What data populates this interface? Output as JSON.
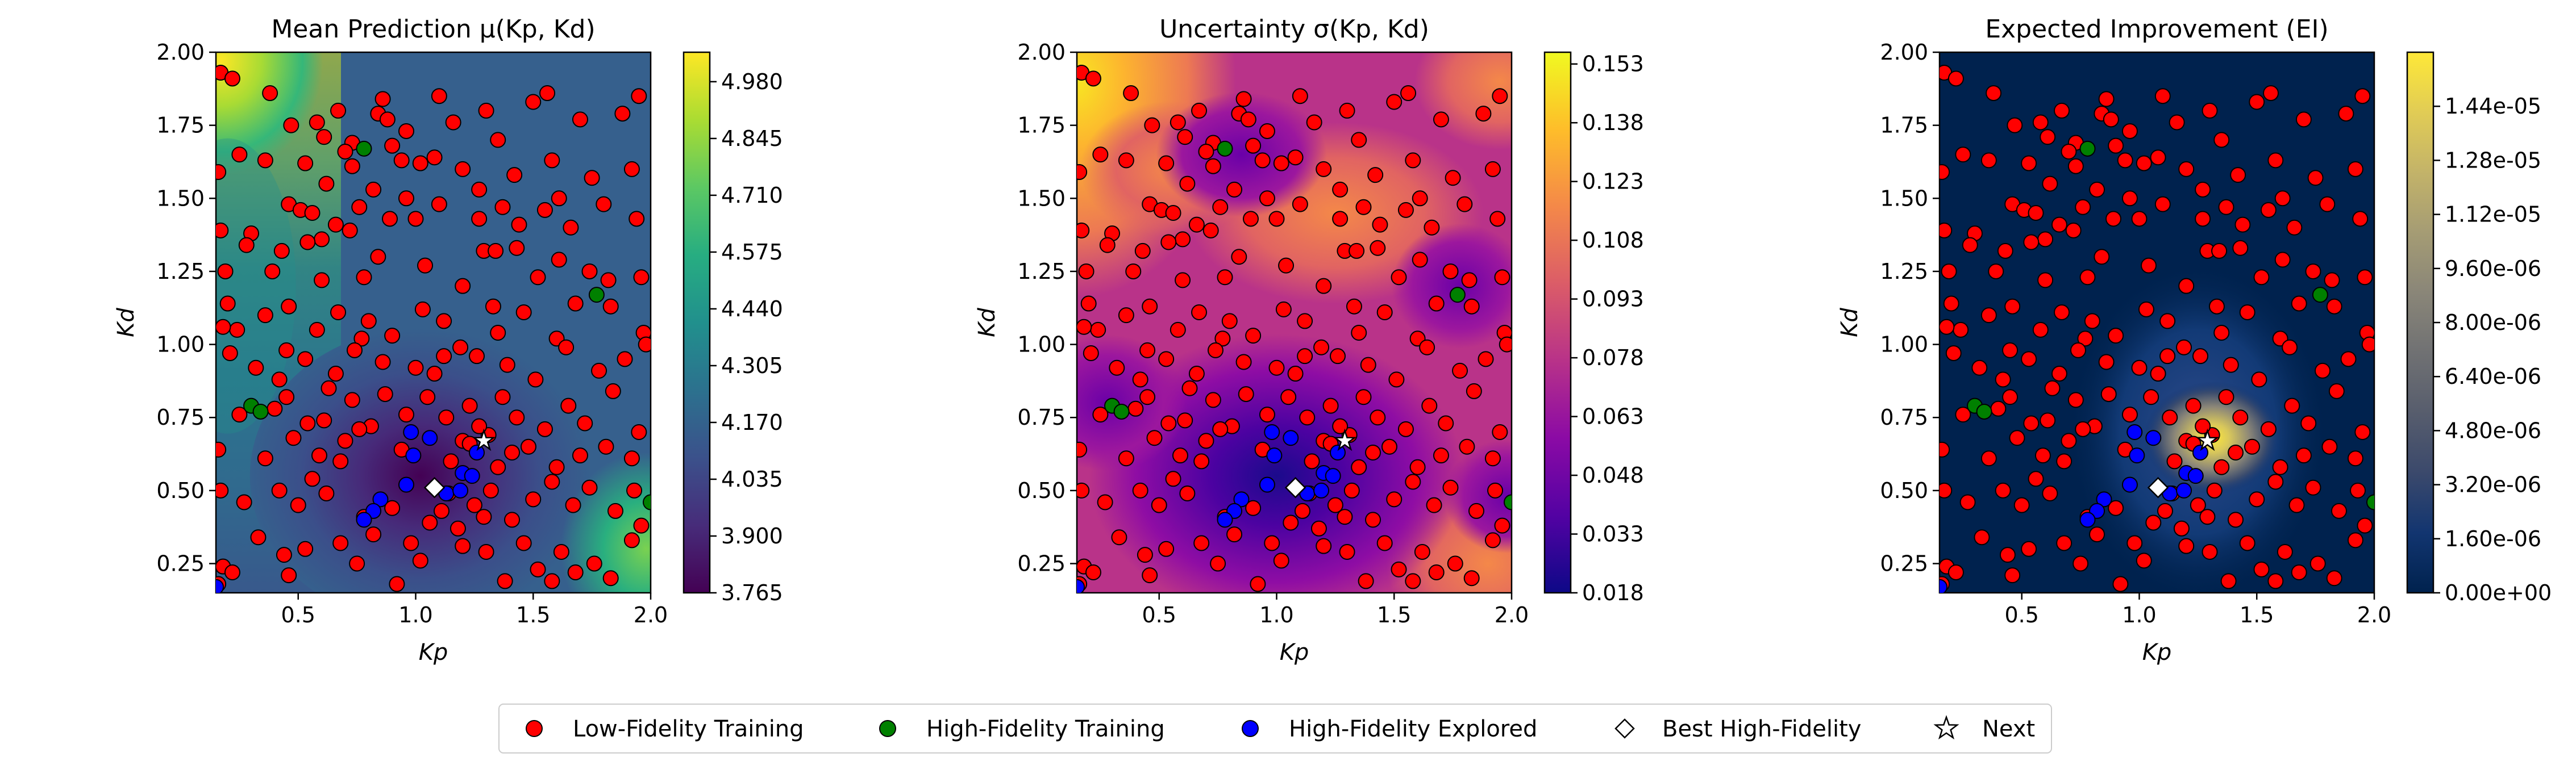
{
  "chart_data": [
    {
      "type": "heatmap",
      "title": "Mean Prediction μ(Kp, Kd)",
      "xlabel": "Kp",
      "ylabel": "Kd",
      "xlim": [
        0.15,
        2.0
      ],
      "ylim": [
        0.15,
        2.0
      ],
      "xticks": [
        "0.5",
        "1.0",
        "1.5",
        "2.0"
      ],
      "yticks": [
        "0.25",
        "0.50",
        "0.75",
        "1.00",
        "1.25",
        "1.50",
        "1.75",
        "2.00"
      ],
      "colormap": "viridis",
      "colorbar_range": [
        3.765,
        5.05
      ],
      "colorbar_ticks": [
        "3.765",
        "3.900",
        "4.035",
        "4.170",
        "4.305",
        "4.440",
        "4.575",
        "4.710",
        "4.845",
        "4.980"
      ]
    },
    {
      "type": "heatmap",
      "title": "Uncertainty σ(Kp, Kd)",
      "xlabel": "Kp",
      "ylabel": "Kd",
      "xlim": [
        0.15,
        2.0
      ],
      "ylim": [
        0.15,
        2.0
      ],
      "xticks": [
        "0.5",
        "1.0",
        "1.5",
        "2.0"
      ],
      "yticks": [
        "0.25",
        "0.50",
        "0.75",
        "1.00",
        "1.25",
        "1.50",
        "1.75",
        "2.00"
      ],
      "colormap": "plasma",
      "colorbar_range": [
        0.018,
        0.156
      ],
      "colorbar_ticks": [
        "0.018",
        "0.033",
        "0.048",
        "0.063",
        "0.078",
        "0.093",
        "0.108",
        "0.123",
        "0.138",
        "0.153"
      ]
    },
    {
      "type": "heatmap",
      "title": "Expected Improvement (EI)",
      "xlabel": "Kp",
      "ylabel": "Kd",
      "xlim": [
        0.15,
        2.0
      ],
      "ylim": [
        0.15,
        2.0
      ],
      "xticks": [
        "0.5",
        "1.0",
        "1.5",
        "2.0"
      ],
      "yticks": [
        "0.25",
        "0.50",
        "0.75",
        "1.00",
        "1.25",
        "1.50",
        "1.75",
        "2.00"
      ],
      "colormap": "cividis",
      "colorbar_range": [
        0.0,
        1.6e-05
      ],
      "colorbar_ticks": [
        "0.00e+00",
        "1.60e-06",
        "3.20e-06",
        "4.80e-06",
        "6.40e-06",
        "8.00e-06",
        "9.60e-06",
        "1.12e-05",
        "1.28e-05",
        "1.44e-05"
      ]
    }
  ],
  "scatter": {
    "low_fidelity": [
      [
        0.17,
        1.93
      ],
      [
        0.22,
        1.91
      ],
      [
        0.38,
        1.86
      ],
      [
        0.47,
        1.75
      ],
      [
        0.67,
        1.8
      ],
      [
        0.58,
        1.76
      ],
      [
        0.61,
        1.71
      ],
      [
        0.73,
        1.69
      ],
      [
        0.84,
        1.79
      ],
      [
        0.86,
        1.84
      ],
      [
        0.88,
        1.77
      ],
      [
        0.96,
        1.73
      ],
      [
        1.1,
        1.85
      ],
      [
        1.16,
        1.76
      ],
      [
        1.3,
        1.8
      ],
      [
        1.35,
        1.7
      ],
      [
        1.5,
        1.83
      ],
      [
        1.56,
        1.86
      ],
      [
        1.7,
        1.77
      ],
      [
        1.88,
        1.79
      ],
      [
        1.95,
        1.85
      ],
      [
        0.9,
        1.68
      ],
      [
        0.16,
        1.59
      ],
      [
        0.25,
        1.65
      ],
      [
        0.36,
        1.63
      ],
      [
        0.53,
        1.62
      ],
      [
        0.7,
        1.66
      ],
      [
        0.73,
        1.61
      ],
      [
        0.82,
        1.53
      ],
      [
        0.94,
        1.63
      ],
      [
        1.02,
        1.62
      ],
      [
        1.08,
        1.64
      ],
      [
        1.2,
        1.6
      ],
      [
        1.27,
        1.53
      ],
      [
        1.42,
        1.58
      ],
      [
        1.58,
        1.63
      ],
      [
        1.75,
        1.57
      ],
      [
        1.92,
        1.6
      ],
      [
        0.62,
        1.55
      ],
      [
        0.96,
        1.5
      ],
      [
        1.37,
        1.47
      ],
      [
        1.61,
        1.5
      ],
      [
        0.17,
        1.39
      ],
      [
        0.3,
        1.38
      ],
      [
        0.46,
        1.48
      ],
      [
        0.51,
        1.46
      ],
      [
        0.56,
        1.45
      ],
      [
        0.66,
        1.41
      ],
      [
        0.6,
        1.36
      ],
      [
        0.76,
        1.47
      ],
      [
        0.89,
        1.43
      ],
      [
        1.0,
        1.43
      ],
      [
        1.1,
        1.48
      ],
      [
        1.27,
        1.43
      ],
      [
        1.44,
        1.41
      ],
      [
        1.55,
        1.46
      ],
      [
        1.66,
        1.4
      ],
      [
        1.8,
        1.48
      ],
      [
        1.94,
        1.43
      ],
      [
        0.72,
        1.39
      ],
      [
        0.54,
        1.35
      ],
      [
        0.43,
        1.32
      ],
      [
        0.19,
        1.25
      ],
      [
        0.39,
        1.25
      ],
      [
        0.28,
        1.34
      ],
      [
        0.78,
        1.23
      ],
      [
        0.84,
        1.3
      ],
      [
        1.04,
        1.27
      ],
      [
        1.2,
        1.2
      ],
      [
        1.29,
        1.32
      ],
      [
        1.34,
        1.32
      ],
      [
        1.43,
        1.33
      ],
      [
        1.52,
        1.23
      ],
      [
        1.61,
        1.29
      ],
      [
        1.74,
        1.25
      ],
      [
        1.82,
        1.22
      ],
      [
        1.96,
        1.23
      ],
      [
        0.6,
        1.22
      ],
      [
        0.2,
        1.14
      ],
      [
        0.24,
        1.05
      ],
      [
        0.36,
        1.1
      ],
      [
        0.58,
        1.05
      ],
      [
        0.67,
        1.11
      ],
      [
        0.8,
        1.08
      ],
      [
        0.9,
        1.03
      ],
      [
        1.03,
        1.12
      ],
      [
        1.12,
        1.08
      ],
      [
        1.33,
        1.13
      ],
      [
        1.35,
        1.04
      ],
      [
        1.46,
        1.11
      ],
      [
        1.6,
        1.02
      ],
      [
        1.68,
        1.14
      ],
      [
        1.83,
        1.13
      ],
      [
        1.97,
        1.04
      ],
      [
        0.46,
        1.13
      ],
      [
        0.18,
        1.06
      ],
      [
        0.77,
        1.02
      ],
      [
        0.21,
        0.97
      ],
      [
        0.32,
        0.92
      ],
      [
        0.42,
        0.88
      ],
      [
        0.53,
        0.95
      ],
      [
        0.66,
        0.9
      ],
      [
        0.74,
        0.98
      ],
      [
        0.86,
        0.94
      ],
      [
        1.0,
        0.92
      ],
      [
        1.08,
        0.9
      ],
      [
        1.19,
        0.99
      ],
      [
        1.26,
        0.96
      ],
      [
        1.39,
        0.93
      ],
      [
        1.51,
        0.88
      ],
      [
        1.64,
        0.99
      ],
      [
        1.78,
        0.91
      ],
      [
        1.89,
        0.95
      ],
      [
        1.98,
        1.0
      ],
      [
        0.45,
        0.98
      ],
      [
        1.12,
        0.96
      ],
      [
        0.25,
        0.76
      ],
      [
        0.45,
        0.82
      ],
      [
        0.54,
        0.73
      ],
      [
        0.63,
        0.85
      ],
      [
        0.73,
        0.81
      ],
      [
        0.81,
        0.72
      ],
      [
        0.87,
        0.83
      ],
      [
        0.96,
        0.76
      ],
      [
        1.05,
        0.82
      ],
      [
        1.13,
        0.75
      ],
      [
        1.23,
        0.79
      ],
      [
        1.31,
        0.69
      ],
      [
        1.37,
        0.82
      ],
      [
        1.43,
        0.75
      ],
      [
        1.55,
        0.71
      ],
      [
        1.65,
        0.79
      ],
      [
        1.72,
        0.73
      ],
      [
        1.84,
        0.84
      ],
      [
        1.95,
        0.7
      ],
      [
        0.61,
        0.74
      ],
      [
        1.27,
        0.72
      ],
      [
        0.4,
        0.78
      ],
      [
        0.16,
        0.64
      ],
      [
        0.36,
        0.61
      ],
      [
        0.48,
        0.68
      ],
      [
        0.68,
        0.6
      ],
      [
        0.7,
        0.67
      ],
      [
        0.76,
        0.71
      ],
      [
        0.94,
        0.64
      ],
      [
        1.15,
        0.6
      ],
      [
        1.2,
        0.67
      ],
      [
        1.23,
        0.66
      ],
      [
        1.41,
        0.63
      ],
      [
        1.48,
        0.65
      ],
      [
        1.6,
        0.58
      ],
      [
        1.7,
        0.62
      ],
      [
        1.81,
        0.65
      ],
      [
        1.92,
        0.61
      ],
      [
        0.59,
        0.62
      ],
      [
        1.35,
        0.58
      ],
      [
        0.17,
        0.5
      ],
      [
        0.27,
        0.46
      ],
      [
        0.42,
        0.5
      ],
      [
        0.56,
        0.54
      ],
      [
        0.62,
        0.49
      ],
      [
        0.78,
        0.41
      ],
      [
        0.9,
        0.44
      ],
      [
        1.06,
        0.39
      ],
      [
        1.11,
        0.43
      ],
      [
        1.14,
        0.49
      ],
      [
        1.25,
        0.45
      ],
      [
        1.32,
        0.5
      ],
      [
        1.41,
        0.4
      ],
      [
        1.5,
        0.47
      ],
      [
        1.58,
        0.53
      ],
      [
        1.67,
        0.45
      ],
      [
        1.74,
        0.51
      ],
      [
        1.85,
        0.43
      ],
      [
        1.93,
        0.5
      ],
      [
        0.5,
        0.45
      ],
      [
        1.18,
        0.37
      ],
      [
        1.29,
        0.41
      ],
      [
        0.18,
        0.24
      ],
      [
        0.22,
        0.22
      ],
      [
        0.33,
        0.34
      ],
      [
        0.44,
        0.28
      ],
      [
        0.46,
        0.21
      ],
      [
        0.53,
        0.3
      ],
      [
        0.68,
        0.32
      ],
      [
        0.75,
        0.25
      ],
      [
        0.82,
        0.35
      ],
      [
        0.98,
        0.32
      ],
      [
        1.02,
        0.26
      ],
      [
        1.2,
        0.31
      ],
      [
        1.3,
        0.29
      ],
      [
        1.38,
        0.19
      ],
      [
        1.46,
        0.32
      ],
      [
        1.52,
        0.23
      ],
      [
        1.58,
        0.19
      ],
      [
        1.62,
        0.29
      ],
      [
        1.68,
        0.22
      ],
      [
        1.76,
        0.25
      ],
      [
        1.83,
        0.2
      ],
      [
        1.92,
        0.33
      ],
      [
        1.96,
        0.38
      ],
      [
        0.92,
        0.18
      ],
      [
        0.16,
        0.18
      ]
    ],
    "high_fidelity_training": [
      [
        0.78,
        1.67
      ],
      [
        1.77,
        1.17
      ],
      [
        0.3,
        0.79
      ],
      [
        0.34,
        0.77
      ],
      [
        2.0,
        0.46
      ]
    ],
    "high_fidelity_explored": [
      [
        0.98,
        0.7
      ],
      [
        1.06,
        0.68
      ],
      [
        0.99,
        0.62
      ],
      [
        1.26,
        0.63
      ],
      [
        0.85,
        0.47
      ],
      [
        1.2,
        0.56
      ],
      [
        1.24,
        0.55
      ],
      [
        0.82,
        0.43
      ],
      [
        0.96,
        0.52
      ],
      [
        1.13,
        0.49
      ],
      [
        1.19,
        0.5
      ],
      [
        0.78,
        0.4
      ],
      [
        0.15,
        0.17
      ]
    ],
    "best_high_fidelity": [
      1.08,
      0.51
    ],
    "next": [
      1.29,
      0.67
    ]
  },
  "legend": {
    "placement": "bottom-center",
    "entries": [
      "Low-Fidelity Training",
      "High-Fidelity Training",
      "High-Fidelity Explored",
      "Best High-Fidelity",
      "Next"
    ]
  },
  "colors": {
    "low_fidelity": "#ff0000",
    "high_fidelity_training": "#008000",
    "high_fidelity_explored": "#0000ff",
    "marker_edge": "#000000",
    "best_fill": "#ffffff",
    "next_fill": "#ffffff"
  }
}
